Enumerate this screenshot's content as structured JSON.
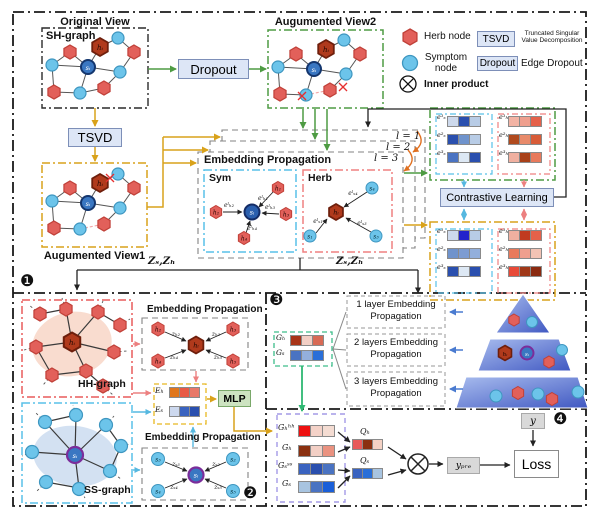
{
  "colors": {
    "herb_node": "#e2605a",
    "herb_dark": "#b03a1c",
    "symptom_node": "#6cc4ea",
    "symptom_dark": "#3a77c2",
    "purple_ring": "#7b2d9b",
    "flow_box_fill": "#dde6f6",
    "green_frame": "#4e9b43",
    "yellow_frame": "#d9a21b",
    "red_frame": "#e85c5c",
    "cyan_frame": "#58c0e8",
    "purple_frame": "#a49ae6",
    "green_dash": "#3dbd8a",
    "mlp_fill": "#cde3c1",
    "pyramid_blue": "#4058c2"
  },
  "markers": {
    "s1": "❶",
    "s2": "❷",
    "s3": "❸",
    "s4": "❹"
  },
  "legend": {
    "herb": "Herb node",
    "symptom": "Symptom node",
    "tsvd": "TSVD",
    "tsvd_desc": "Truncated Singular Value Decomposition",
    "dropout": "Dropout",
    "dropout_desc": "Edge Dropout",
    "inner_product": "Inner product"
  },
  "flow": {
    "original_view": "Original View",
    "sh_graph": "SH-graph",
    "dropout": "Dropout",
    "aug_view2": "Augumented View2",
    "tsvd": "TSVD",
    "aug_view1": "Augumented View1",
    "z_left": "Zₛ,Zₕ",
    "z_right": "Zₛ,Zₕ"
  },
  "nodes": {
    "h_i": "hᵢ",
    "s_i": "sᵢ"
  },
  "ep": {
    "title": "Embedding Propagation",
    "layers": [
      "l = 1",
      "l = 2",
      "l = 3"
    ],
    "sym": "Sym",
    "herb": "Herb",
    "sym_nodes": [
      "h₁",
      "h₂",
      "h₃",
      "h₄"
    ],
    "sym_edges": [
      "eˡₕ₁",
      "eˡₕ₂",
      "eˡₕ₃",
      "eˡₕ₄"
    ],
    "herb_nodes": [
      "s₄",
      "s₃",
      "s₁"
    ],
    "herb_edges": [
      "eˡₛ₄",
      "eˡₛ₃",
      "eˡₛ₁"
    ]
  },
  "contrastive": {
    "title": "Contrastive Learning",
    "s_labels": [
      "e¹ₛ",
      "e²ₛ",
      "e³ₛ"
    ],
    "h_labels": [
      "e¹ₕ",
      "e²ₕ",
      "e³ₕ"
    ],
    "v2_s_bars": [
      [
        "#cdd9ec",
        "#2a4fae",
        "#b8cce6"
      ],
      [
        "#2a4fae",
        "#6f93cc",
        "#b8cce6"
      ],
      [
        "#4a73c2",
        "#dde8f4",
        "#2a4fae"
      ]
    ],
    "v2_h_bars": [
      [
        "#f2b3a4",
        "#ef9f8e",
        "#e5614a"
      ],
      [
        "#b04a1e",
        "#e88a6a",
        "#d85c38"
      ],
      [
        "#f0b0a0",
        "#a84018",
        "#e87a5c"
      ]
    ],
    "v1_s_bars": [
      [
        "#cdd9ec",
        "#2222cc",
        "#b8cce6"
      ],
      [
        "#6f93cc",
        "#7d9cd2",
        "#93afdc"
      ],
      [
        "#2a4fae",
        "#dde8f4",
        "#2a4fae"
      ]
    ],
    "v1_h_bars": [
      [
        "#f0b0a0",
        "#c03a20",
        "#e5614a"
      ],
      [
        "#e87a5c",
        "#ef9f8e",
        "#f2c3b4"
      ],
      [
        "#e84a38",
        "#a03818",
        "#8a2a10"
      ]
    ]
  },
  "hh": {
    "name": "HH-graph",
    "ep_title": "Embedding Propagation",
    "nodes": [
      "h₂",
      "h₃",
      "h₄",
      "h₅"
    ],
    "z": [
      "zₕ₂",
      "zₕ₃",
      "zₕ₄",
      "zₕ₅"
    ]
  },
  "ss": {
    "name": "SS-graph",
    "ep_title": "Embedding Propagation",
    "nodes": [
      "s₃",
      "s₂",
      "s₄",
      "s₅"
    ],
    "z": [
      "zₛ₃",
      "zₛ₂",
      "zₛ₄",
      "zₛ₅"
    ]
  },
  "fusion": {
    "e_h": "Eₕ",
    "e_s": "Eₛ",
    "mlp": "MLP",
    "e_h_bar": [
      "#e0761c",
      "#e85a45",
      "#e87868"
    ],
    "e_s_bar": [
      "#ccd8ee",
      "#3a63c0",
      "#2a4fae"
    ]
  },
  "agg": {
    "g_h": "Gₕ",
    "g_s": "Gₛ",
    "g_h_bar": [
      "#a83418",
      "#f2cfc5",
      "#d86a55"
    ],
    "g_s_bar": [
      "#4a73c2",
      "#93afdc",
      "#2a6fd8"
    ],
    "layer_boxes": [
      "1 layer Embedding Propagation",
      "2 layers Embedding Propagation",
      "3 layers Embedding Propagation"
    ]
  },
  "pred": {
    "g_hh": "Gₕʰʰ",
    "g_h": "Gₕ",
    "g_ss": "Gₛˢˢ",
    "g_s": "Gₛ",
    "g_hh_bar": [
      "#ee1111",
      "#f4d2c8",
      "#f4dcd2"
    ],
    "g_h_bar": [
      "#8a3010",
      "#f2cfc5",
      "#ea9280"
    ],
    "g_ss_bar": [
      "#3a63c0",
      "#2a4fae",
      "#4a73c2"
    ],
    "g_s_bar": [
      "#a8c4e0",
      "#4a73c2",
      "#1a5fd8"
    ],
    "q_h": "Qₕ",
    "q_s": "Qₛ",
    "q_h_bar": [
      "#e85a5a",
      "#8a3010",
      "#f4d2c5"
    ],
    "q_s_bar": [
      "#3a63c0",
      "#2a6fd8",
      "#a8c4e0"
    ],
    "y_pre": "yₚᵣₑ",
    "y": "y",
    "loss": "Loss"
  }
}
